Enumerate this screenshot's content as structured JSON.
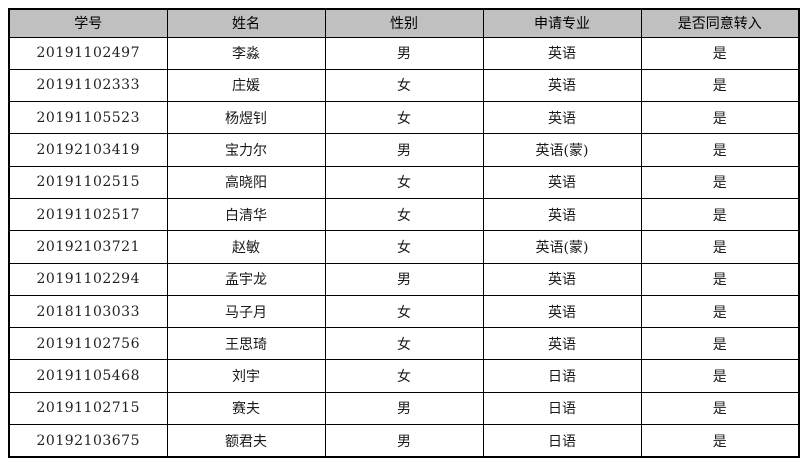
{
  "colors": {
    "header_bg": "#c0c0c0",
    "border": "#000000",
    "text": "#1a1a1a"
  },
  "table": {
    "columns": [
      "学号",
      "姓名",
      "性别",
      "申请专业",
      "是否同意转入"
    ],
    "rows": [
      {
        "cells": [
          "20191102497",
          "李淼",
          "男",
          "英语",
          "是"
        ]
      },
      {
        "cells": [
          "20191102333",
          "庄媛",
          "女",
          "英语",
          "是"
        ]
      },
      {
        "cells": [
          "20191105523",
          "杨煜钊",
          "女",
          "英语",
          "是"
        ]
      },
      {
        "cells": [
          "20192103419",
          "宝力尔",
          "男",
          "英语(蒙)",
          "是"
        ]
      },
      {
        "cells": [
          "20191102515",
          "高晓阳",
          "女",
          "英语",
          "是"
        ]
      },
      {
        "cells": [
          "20191102517",
          "白清华",
          "女",
          "英语",
          "是"
        ]
      },
      {
        "cells": [
          "20192103721",
          "赵敏",
          "女",
          "英语(蒙)",
          "是"
        ]
      },
      {
        "cells": [
          "20191102294",
          "孟宇龙",
          "男",
          "英语",
          "是"
        ]
      },
      {
        "cells": [
          "20181103033",
          "马子月",
          "女",
          "英语",
          "是"
        ]
      },
      {
        "cells": [
          "20191102756",
          "王思琦",
          "女",
          "英语",
          "是"
        ]
      },
      {
        "cells": [
          "20191105468",
          "刘宇",
          "女",
          "日语",
          "是"
        ]
      },
      {
        "cells": [
          "20191102715",
          "赛夫",
          "男",
          "日语",
          "是"
        ]
      },
      {
        "cells": [
          "20192103675",
          "额君夫",
          "男",
          "日语",
          "是"
        ]
      }
    ]
  }
}
